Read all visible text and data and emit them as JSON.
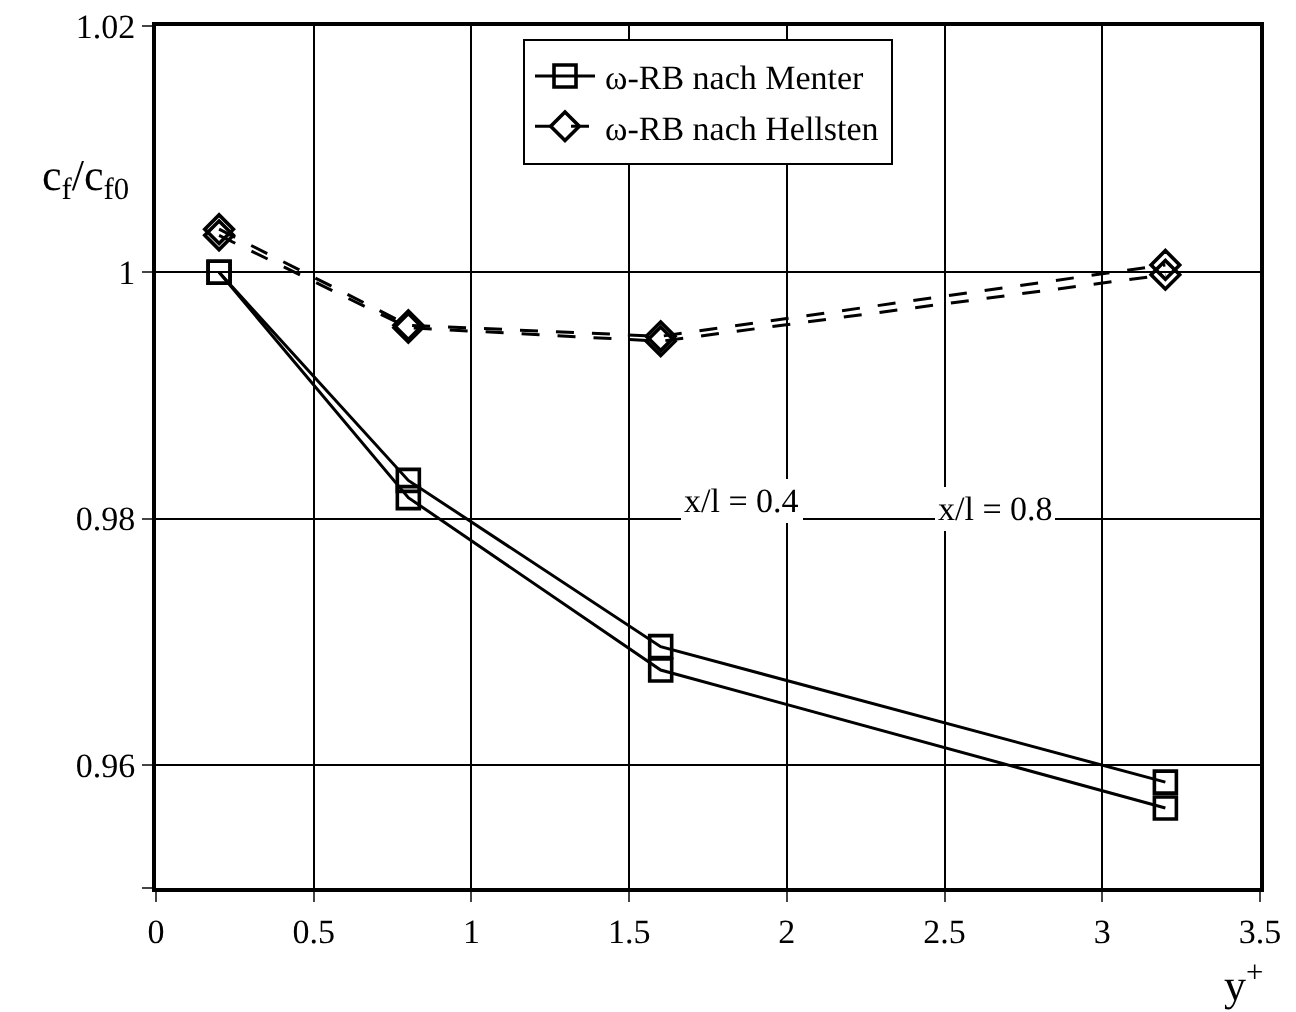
{
  "chart_data": {
    "type": "line",
    "xlabel": "y$^{+}$",
    "ylabel": "c$_{f}$/c$_{f0}$",
    "x": [
      0.2,
      0.8,
      1.6,
      3.2
    ],
    "series": [
      {
        "name": "ω-RB nach Menter",
        "color": "#000000",
        "marker": "square",
        "line_style": "solid",
        "values": [
          1.0,
          0.9817,
          0.9677,
          0.9565
        ]
      },
      {
        "color": "#000000",
        "marker": "square",
        "line_style": "solid",
        "values": [
          1.0,
          0.9831,
          0.9696,
          0.9586
        ]
      },
      {
        "name": "ω-RB nach Hellsten",
        "color": "#000000",
        "marker": "diamond",
        "line_style": "dashed",
        "values": [
          1.0035,
          0.9957,
          0.9948,
          1.0006
        ]
      },
      {
        "color": "#000000",
        "marker": "diamond",
        "line_style": "dashed",
        "values": [
          1.003,
          0.9955,
          0.9944,
          0.9998
        ]
      }
    ],
    "xlim": [
      0,
      3.5
    ],
    "xticks": [
      0,
      0.5,
      1,
      1.5,
      2,
      2.5,
      3,
      3.5
    ],
    "ylim": [
      0.95,
      1.02
    ],
    "yticks": [
      {
        "value": 0.95,
        "label": null
      },
      0.96,
      0.98,
      1,
      1.02
    ],
    "annotations": [
      "x/l = 0.4",
      "x/l = 0.8"
    ],
    "grid": true,
    "legend": "top"
  }
}
